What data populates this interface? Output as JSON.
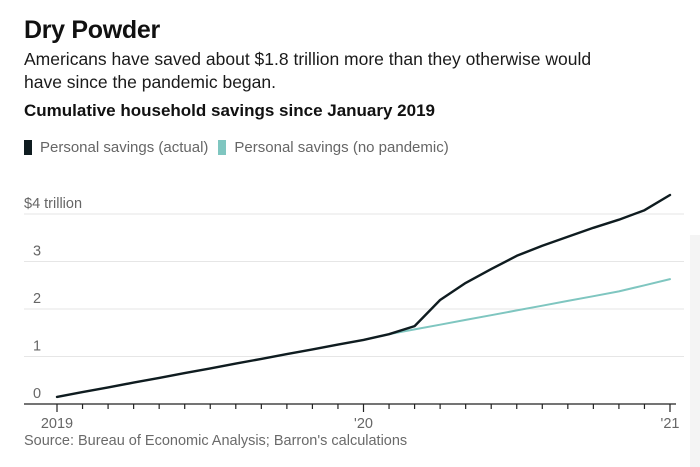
{
  "header": {
    "title": "Dry Powder",
    "subtitle": "Americans have saved about $1.8 trillion more than they otherwise would have since the pandemic began."
  },
  "chart_data": {
    "type": "line",
    "title": "Cumulative household savings since January 2019",
    "xlabel": "",
    "ylabel": "",
    "x": [
      "2019-01",
      "2019-02",
      "2019-03",
      "2019-04",
      "2019-05",
      "2019-06",
      "2019-07",
      "2019-08",
      "2019-09",
      "2019-10",
      "2019-11",
      "2019-12",
      "2020-01",
      "2020-02",
      "2020-03",
      "2020-04",
      "2020-05",
      "2020-06",
      "2020-07",
      "2020-08",
      "2020-09",
      "2020-10",
      "2020-11",
      "2020-12",
      "2021-01"
    ],
    "series": [
      {
        "name": "Personal savings (actual)",
        "color": "#0f1c20",
        "values": [
          0.15,
          0.25,
          0.35,
          0.45,
          0.55,
          0.65,
          0.75,
          0.85,
          0.95,
          1.05,
          1.15,
          1.25,
          1.35,
          1.47,
          1.64,
          2.19,
          2.55,
          2.84,
          3.12,
          3.33,
          3.52,
          3.71,
          3.88,
          4.08,
          4.4
        ]
      },
      {
        "name": "Personal savings (no pandemic)",
        "color": "#7fc6c0",
        "values": [
          null,
          null,
          null,
          null,
          null,
          null,
          null,
          null,
          null,
          null,
          null,
          null,
          null,
          1.47,
          1.57,
          1.67,
          1.77,
          1.87,
          1.97,
          2.07,
          2.17,
          2.27,
          2.37,
          2.5,
          2.63
        ]
      }
    ],
    "ylim": [
      0,
      4
    ],
    "yticks": [
      {
        "value": 4,
        "label": "$4 trillion"
      },
      {
        "value": 3,
        "label": "3"
      },
      {
        "value": 2,
        "label": "2"
      },
      {
        "value": 1,
        "label": "1"
      },
      {
        "value": 0,
        "label": "0"
      }
    ],
    "xticks": [
      {
        "index": 0,
        "label": "2019"
      },
      {
        "index": 12,
        "label": "'20"
      },
      {
        "index": 24,
        "label": "'21"
      }
    ],
    "grid": true,
    "legend": "top-left"
  },
  "footer": {
    "source": "Source: Bureau of Economic Analysis; Barron's calculations"
  }
}
